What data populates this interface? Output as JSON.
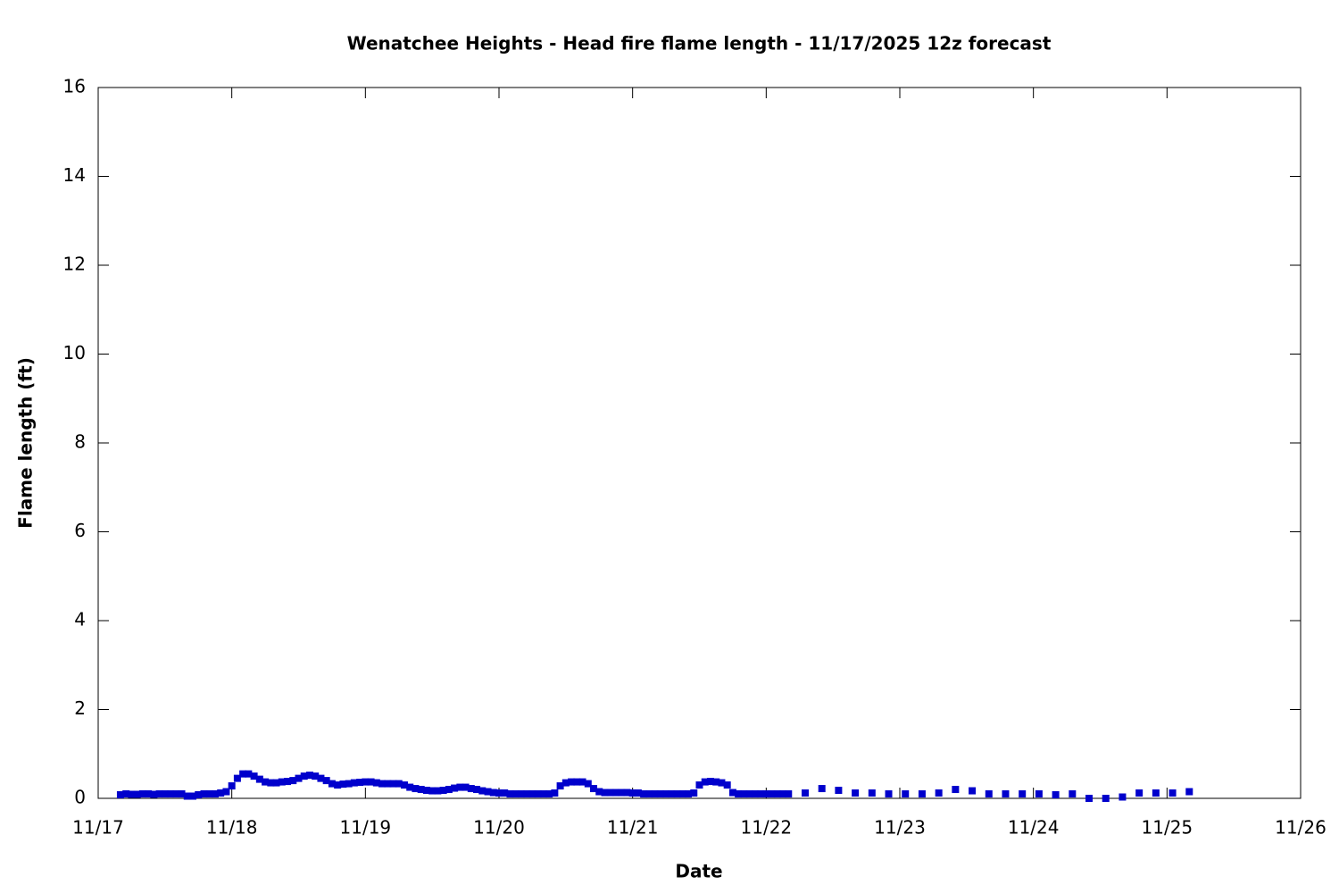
{
  "chart_data": {
    "type": "scatter",
    "title": "Wenatchee Heights - Head fire flame length - 11/17/2025 12z forecast",
    "x_label": "Date",
    "y_label": "Flame length (ft)",
    "xlim": [
      0,
      216
    ],
    "xticks": [
      {
        "value": 0,
        "label": "11/17"
      },
      {
        "value": 24,
        "label": "11/18"
      },
      {
        "value": 48,
        "label": "11/19"
      },
      {
        "value": 72,
        "label": "11/20"
      },
      {
        "value": 96,
        "label": "11/21"
      },
      {
        "value": 120,
        "label": "11/22"
      },
      {
        "value": 144,
        "label": "11/23"
      },
      {
        "value": 168,
        "label": "11/24"
      },
      {
        "value": 192,
        "label": "11/25"
      },
      {
        "value": 216,
        "label": "11/26"
      }
    ],
    "ylim": [
      0,
      16
    ],
    "yticks": [
      0,
      2,
      4,
      6,
      8,
      10,
      12,
      14,
      16
    ],
    "grid": false,
    "series": [
      {
        "color": "#0000cc",
        "x": [
          4,
          5,
          6,
          7,
          8,
          9,
          10,
          11,
          12,
          13,
          14,
          15,
          16,
          17,
          18,
          19,
          20,
          21,
          22,
          23,
          24,
          25,
          26,
          27,
          28,
          29,
          30,
          31,
          32,
          33,
          34,
          35,
          36,
          37,
          38,
          39,
          40,
          41,
          42,
          43,
          44,
          45,
          46,
          47,
          48,
          49,
          50,
          51,
          52,
          53,
          54,
          55,
          56,
          57,
          58,
          59,
          60,
          61,
          62,
          63,
          64,
          65,
          66,
          67,
          68,
          69,
          70,
          71,
          72,
          73,
          74,
          75,
          76,
          77,
          78,
          79,
          80,
          81,
          82,
          83,
          84,
          85,
          86,
          87,
          88,
          89,
          90,
          91,
          92,
          93,
          94,
          95,
          96,
          97,
          98,
          99,
          100,
          101,
          102,
          103,
          104,
          105,
          106,
          107,
          108,
          109,
          110,
          111,
          112,
          113,
          114,
          115,
          116,
          117,
          118,
          119,
          120,
          121,
          122,
          123,
          124,
          127,
          130,
          133,
          136,
          139,
          142,
          145,
          148,
          151,
          154,
          157,
          160,
          163,
          166,
          169,
          172,
          175,
          178,
          181,
          184,
          187,
          190,
          193,
          196
        ],
        "values": [
          0.08,
          0.1,
          0.09,
          0.09,
          0.1,
          0.1,
          0.09,
          0.1,
          0.1,
          0.1,
          0.1,
          0.1,
          0.05,
          0.05,
          0.08,
          0.1,
          0.1,
          0.1,
          0.12,
          0.15,
          0.28,
          0.45,
          0.55,
          0.55,
          0.5,
          0.43,
          0.37,
          0.35,
          0.35,
          0.37,
          0.38,
          0.4,
          0.45,
          0.5,
          0.52,
          0.5,
          0.45,
          0.4,
          0.33,
          0.3,
          0.32,
          0.33,
          0.35,
          0.36,
          0.37,
          0.37,
          0.35,
          0.33,
          0.33,
          0.33,
          0.33,
          0.3,
          0.25,
          0.22,
          0.2,
          0.18,
          0.17,
          0.17,
          0.18,
          0.2,
          0.23,
          0.25,
          0.25,
          0.22,
          0.2,
          0.17,
          0.15,
          0.13,
          0.12,
          0.12,
          0.1,
          0.1,
          0.1,
          0.1,
          0.1,
          0.1,
          0.1,
          0.1,
          0.12,
          0.28,
          0.35,
          0.37,
          0.37,
          0.37,
          0.33,
          0.22,
          0.15,
          0.13,
          0.13,
          0.13,
          0.13,
          0.13,
          0.12,
          0.12,
          0.1,
          0.1,
          0.1,
          0.1,
          0.1,
          0.1,
          0.1,
          0.1,
          0.1,
          0.12,
          0.3,
          0.37,
          0.38,
          0.37,
          0.35,
          0.3,
          0.13,
          0.1,
          0.1,
          0.1,
          0.1,
          0.1,
          0.1,
          0.1,
          0.1,
          0.1,
          0.1,
          0.12,
          0.22,
          0.18,
          0.12,
          0.12,
          0.1,
          0.1,
          0.1,
          0.12,
          0.2,
          0.17,
          0.1,
          0.1,
          0.1,
          0.1,
          0.08,
          0.1,
          0,
          0,
          0.03,
          0.12,
          0.12,
          0.12,
          0.15
        ]
      }
    ]
  }
}
